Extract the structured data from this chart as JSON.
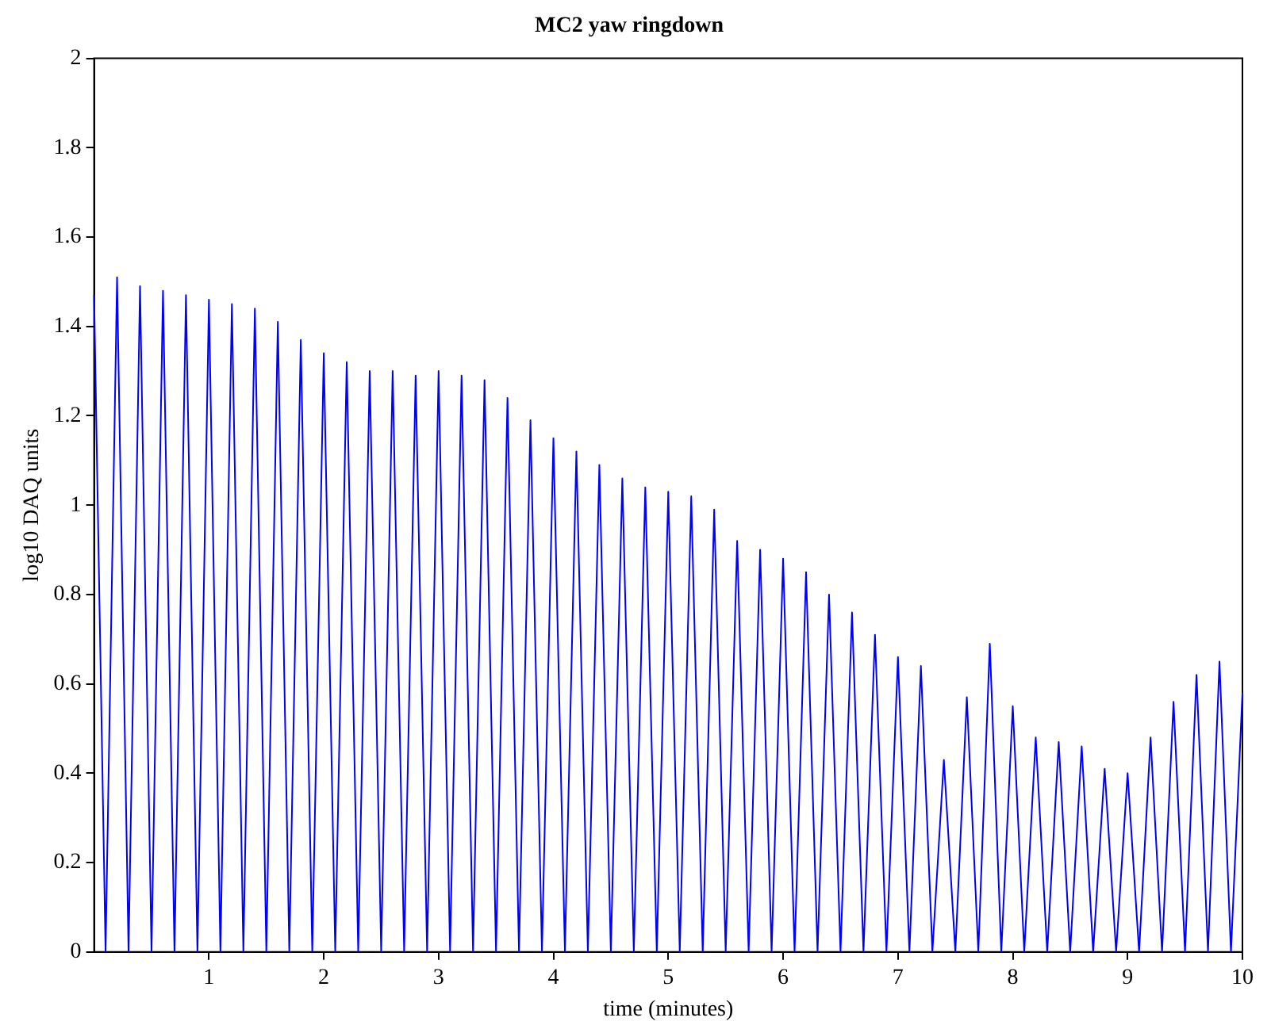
{
  "chart_data": {
    "type": "line",
    "title": "MC2 yaw ringdown",
    "xlabel": "time (minutes)",
    "ylabel": "log10 DAQ units",
    "x": [
      0,
      0.1,
      0.2,
      0.3,
      0.4,
      0.5,
      0.6,
      0.7,
      0.8,
      0.9,
      1,
      1.1,
      1.2,
      1.3,
      1.4,
      1.5,
      1.6,
      1.7,
      1.8,
      1.9,
      2,
      2.1,
      2.2,
      2.3,
      2.4,
      2.5,
      2.6,
      2.7,
      2.8,
      2.9,
      3,
      3.1,
      3.2,
      3.3,
      3.4,
      3.5,
      3.6,
      3.7,
      3.8,
      3.9,
      4,
      4.1,
      4.2,
      4.3,
      4.4,
      4.5,
      4.6,
      4.7,
      4.8,
      4.9,
      5,
      5.1,
      5.2,
      5.3,
      5.4,
      5.5,
      5.6,
      5.7,
      5.8,
      5.9,
      6,
      6.1,
      6.2,
      6.3,
      6.4,
      6.5,
      6.6,
      6.7,
      6.8,
      6.9,
      7,
      7.1,
      7.2,
      7.3,
      7.4,
      7.5,
      7.6,
      7.7,
      7.8,
      7.9,
      8,
      8.1,
      8.2,
      8.3,
      8.4,
      8.5,
      8.6,
      8.7,
      8.8,
      8.9,
      9,
      9.1,
      9.2,
      9.3,
      9.4,
      9.5,
      9.6,
      9.7,
      9.8,
      9.9,
      10
    ],
    "series": [
      {
        "color": "#0000ff",
        "values": [
          1.47,
          0,
          1.51,
          0,
          1.49,
          0,
          1.48,
          0,
          1.47,
          0,
          1.46,
          0,
          1.45,
          0,
          1.44,
          0,
          1.41,
          0,
          1.37,
          0,
          1.34,
          0,
          1.32,
          0,
          1.3,
          0,
          1.3,
          0,
          1.29,
          0,
          1.3,
          0,
          1.29,
          0,
          1.28,
          0,
          1.24,
          0,
          1.19,
          0,
          1.15,
          0,
          1.12,
          0,
          1.09,
          0,
          1.06,
          0,
          1.04,
          0,
          1.03,
          0,
          1.02,
          0,
          0.99,
          0,
          0.92,
          0,
          0.9,
          0,
          0.88,
          0,
          0.85,
          0,
          0.8,
          0,
          0.76,
          0,
          0.71,
          0,
          0.66,
          0,
          0.64,
          0,
          0.43,
          0,
          0.57,
          0,
          0.69,
          0,
          0.55,
          0,
          0.48,
          0,
          0.47,
          0,
          0.46,
          0,
          0.41,
          0,
          0.4,
          0,
          0.48,
          0,
          0.56,
          0,
          0.62,
          0,
          0.65,
          0,
          0.58
        ]
      }
    ],
    "xlim": [
      0,
      10
    ],
    "xticks": [
      1,
      2,
      3,
      4,
      5,
      6,
      7,
      8,
      9,
      10
    ],
    "ylim": [
      0,
      2
    ],
    "yticks": [
      0,
      0.2,
      0.4,
      0.6,
      0.8,
      1,
      1.2,
      1.4,
      1.6,
      1.8,
      2
    ],
    "grid": false,
    "legend": false,
    "marker": "none",
    "line_style": "solid"
  }
}
